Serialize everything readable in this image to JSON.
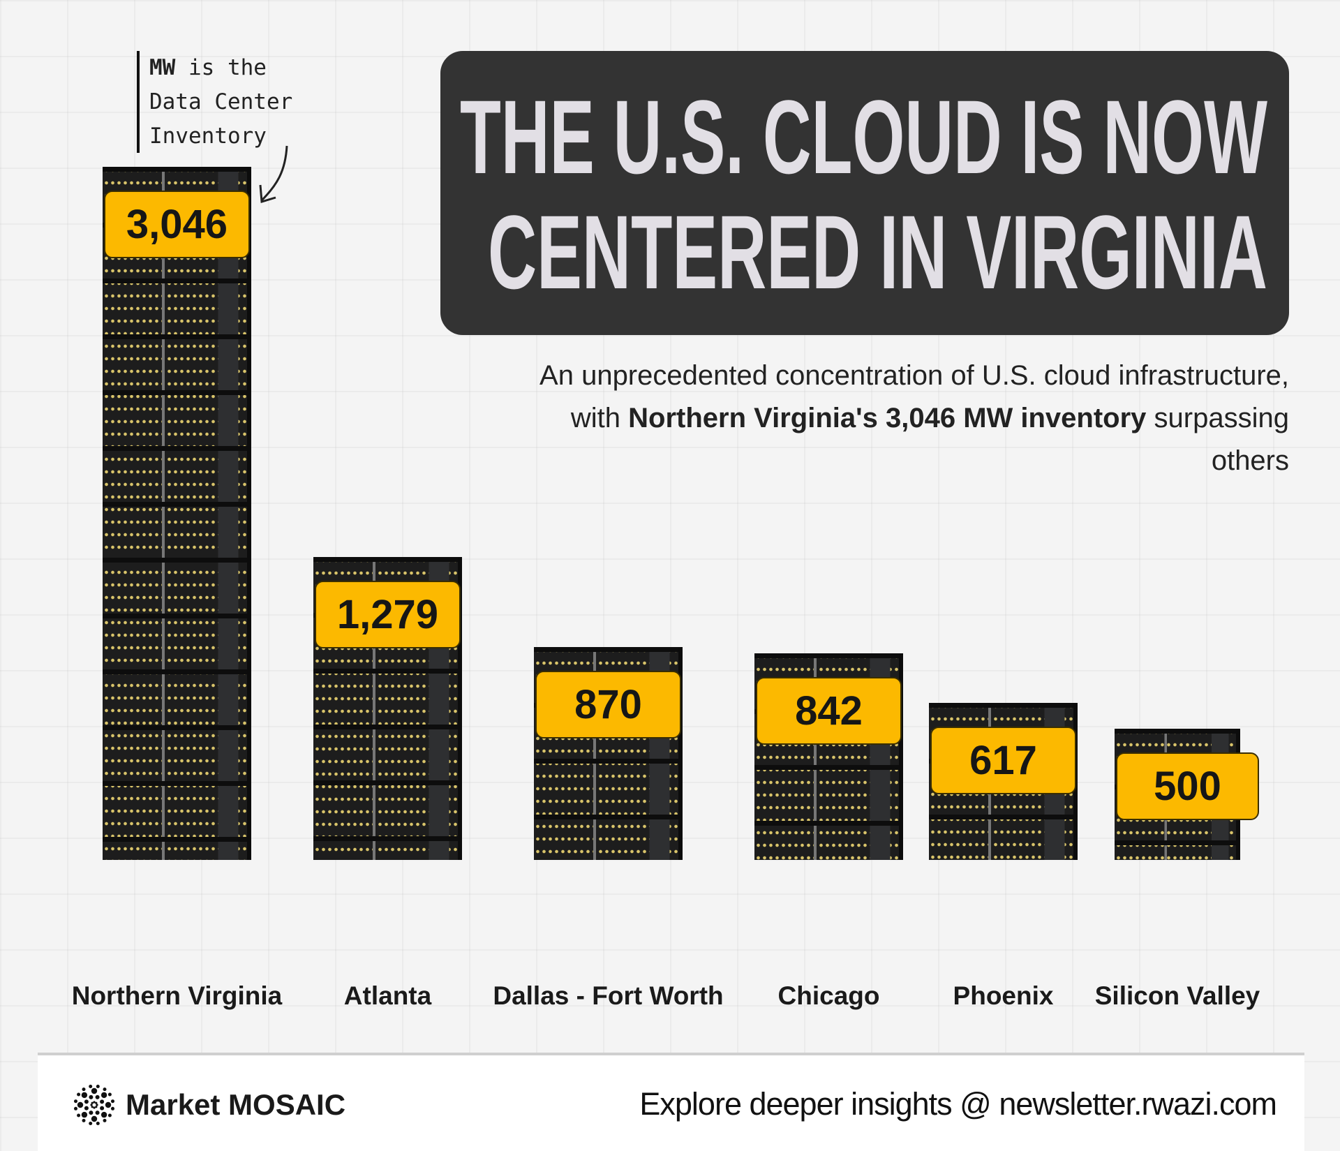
{
  "annotation": {
    "line1_bold": "MW",
    "line1_rest": " is the",
    "line2": "Data Center",
    "line3": "Inventory"
  },
  "title": {
    "line1": "THE U.S. CLOUD IS NOW",
    "line2": "CENTERED IN VIRGINIA"
  },
  "subtitle": {
    "part1": "An unprecedented concentration of U.S. cloud infrastructure, with ",
    "bold1": "Northern Virginia's 3,046 MW inventory",
    "part2": " surpassing others"
  },
  "chart_data": {
    "type": "bar",
    "title": "THE U.S. CLOUD IS NOW CENTERED IN VIRGINIA",
    "xlabel": "",
    "ylabel": "MW (Data Center Inventory)",
    "categories": [
      "Northern Virginia",
      "Atlanta",
      "Dallas - Fort Worth",
      "Chicago",
      "Phoenix",
      "Silicon Valley"
    ],
    "values": [
      3046,
      1279,
      870,
      842,
      617,
      500
    ],
    "labels": [
      "3,046",
      "1,279",
      "870",
      "842",
      "617",
      "500"
    ],
    "grid": false,
    "legend": "none"
  },
  "colors": {
    "badge": "#fcb900",
    "title_bg": "#333333",
    "title_text": "#e2dfe5",
    "background": "#f4f4f4"
  },
  "footer": {
    "brand": "Market MOSAIC",
    "cta": "Explore deeper insights @ newsletter.rwazi.com",
    "logo_icon": "dotted-mosaic-logo"
  }
}
